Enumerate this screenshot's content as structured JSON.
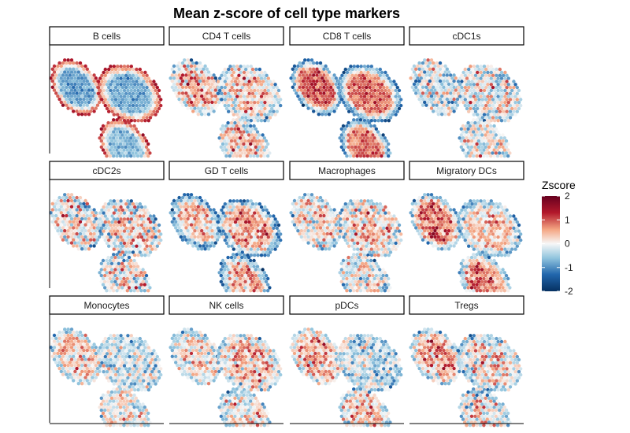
{
  "chart_data": {
    "type": "heatmap",
    "title": "Mean z-score of cell type markers",
    "xlabel": "",
    "ylabel": "",
    "grid": false,
    "legend": {
      "title": "Zscore",
      "placement": "right",
      "ticks": [
        2,
        1,
        0,
        -1,
        -2
      ],
      "range": [
        -2,
        2
      ],
      "colors": {
        "min": "#053061",
        "low": "#2166ac",
        "midlow": "#92c5de",
        "mid": "#f7f7f7",
        "midhigh": "#f4a582",
        "high": "#b2182b",
        "max": "#67001f"
      }
    },
    "facets": [
      {
        "name": "B cells",
        "means": [
          -0.9,
          -0.8,
          -0.7
        ],
        "rim": 1.4,
        "spread": 0.25
      },
      {
        "name": "CD4 T cells",
        "means": [
          0.5,
          0.3,
          0.4
        ],
        "rim": -0.6,
        "spread": 0.7
      },
      {
        "name": "CD8 T cells",
        "means": [
          1.1,
          0.9,
          0.9
        ],
        "rim": -1.4,
        "spread": 0.35
      },
      {
        "name": "cDC1s",
        "means": [
          -0.2,
          0.1,
          -0.1
        ],
        "rim": -0.3,
        "spread": 0.75
      },
      {
        "name": "cDC2s",
        "means": [
          0.1,
          0.2,
          0.1
        ],
        "rim": -0.3,
        "spread": 0.8
      },
      {
        "name": "GD T cells",
        "means": [
          0.4,
          0.6,
          0.5
        ],
        "rim": -1.2,
        "spread": 0.6
      },
      {
        "name": "Macrophages",
        "means": [
          0.2,
          0.3,
          0.0
        ],
        "rim": -0.4,
        "spread": 0.7
      },
      {
        "name": "Migratory DCs",
        "means": [
          0.9,
          0.4,
          0.8
        ],
        "rim": -0.8,
        "spread": 0.55
      },
      {
        "name": "Monocytes",
        "means": [
          0.3,
          -0.2,
          0.2
        ],
        "rim": -0.3,
        "spread": 0.6
      },
      {
        "name": "NK cells",
        "means": [
          0.2,
          0.4,
          0.2
        ],
        "rim": -0.5,
        "spread": 0.65
      },
      {
        "name": "pDCs",
        "means": [
          0.5,
          -0.3,
          0.3
        ],
        "rim": -0.3,
        "spread": 0.65
      },
      {
        "name": "Tregs",
        "means": [
          0.6,
          0.2,
          0.1
        ],
        "rim": -0.5,
        "spread": 0.7
      }
    ]
  }
}
